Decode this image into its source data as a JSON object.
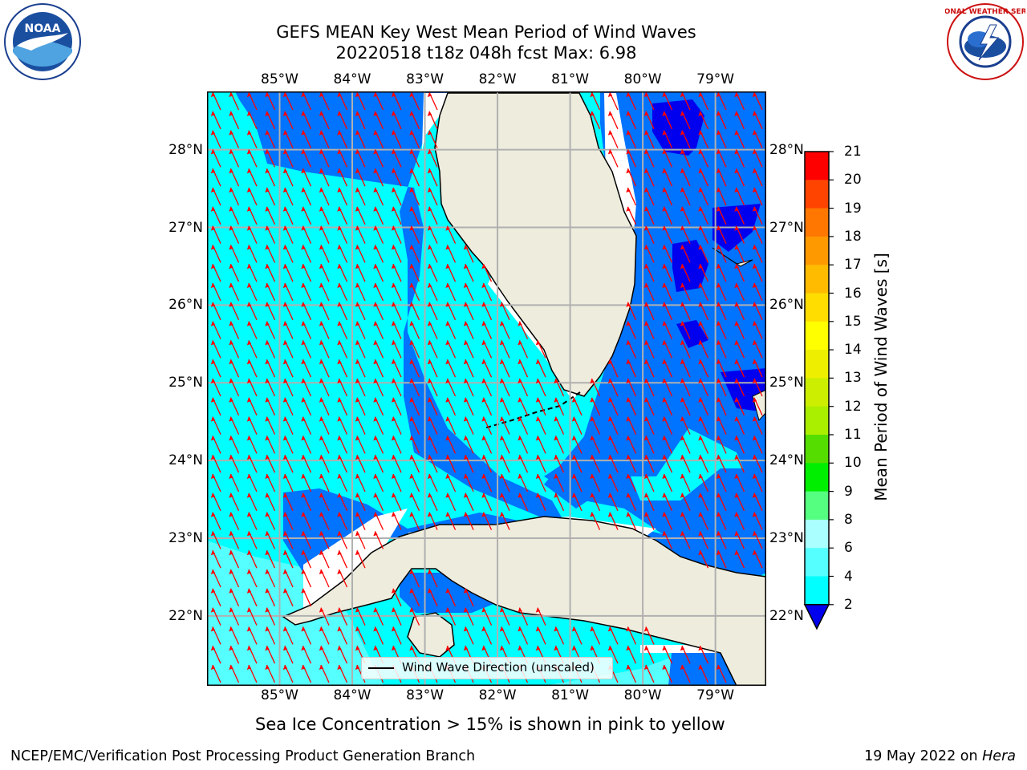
{
  "title": {
    "line1": "GEFS MEAN Key West Mean Period of Wind Waves",
    "line2": "20220518 t18z 048h fcst   Max: 6.98"
  },
  "map": {
    "lon_labels": [
      "85°W",
      "84°W",
      "83°W",
      "82°W",
      "81°W",
      "80°W",
      "79°W"
    ],
    "lat_labels": [
      "28°N",
      "27°N",
      "26°N",
      "25°N",
      "24°N",
      "23°N",
      "22°N"
    ],
    "extent": {
      "lon_min": -86.0,
      "lon_max": -78.3,
      "lat_min": 21.1,
      "lat_max": 28.75
    },
    "land_color": "#eeecdd",
    "grid_color": "#b0b0b0",
    "arrow_color": "#ff0000",
    "arrow_direction": "toward north-northwest",
    "legend_label": "Wind Wave Direction (unscaled)"
  },
  "colorbar": {
    "label": "Mean Period of Wind Waves [s]",
    "ticks": [
      "2",
      "4",
      "6",
      "8",
      "9",
      "10",
      "11",
      "12",
      "13",
      "14",
      "15",
      "16",
      "17",
      "18",
      "19",
      "20",
      "21"
    ],
    "colors": [
      "#0073ff",
      "#00ffff",
      "#55ffff",
      "#aaffff",
      "#55ff80",
      "#00ee00",
      "#55dd00",
      "#aaee00",
      "#ccee00",
      "#eeee00",
      "#ffff00",
      "#ffdd00",
      "#ffbb00",
      "#ff9900",
      "#ff7700",
      "#ff4400",
      "#ff0000"
    ],
    "under_color": "#0000ee"
  },
  "logos": {
    "left": {
      "text": "NOAA",
      "icon": "noaa-logo-icon"
    },
    "right": {
      "icon": "nws-logo-icon",
      "ring_text": "NATIONAL WEATHER SERVICE"
    }
  },
  "subtitle": "Sea Ice Concentration > 15% is shown in pink to yellow",
  "footer": {
    "left": "NCEP/EMC/Verification Post Processing Product Generation Branch",
    "right_prefix": "19 May 2022 on ",
    "right_host": "Hera"
  }
}
